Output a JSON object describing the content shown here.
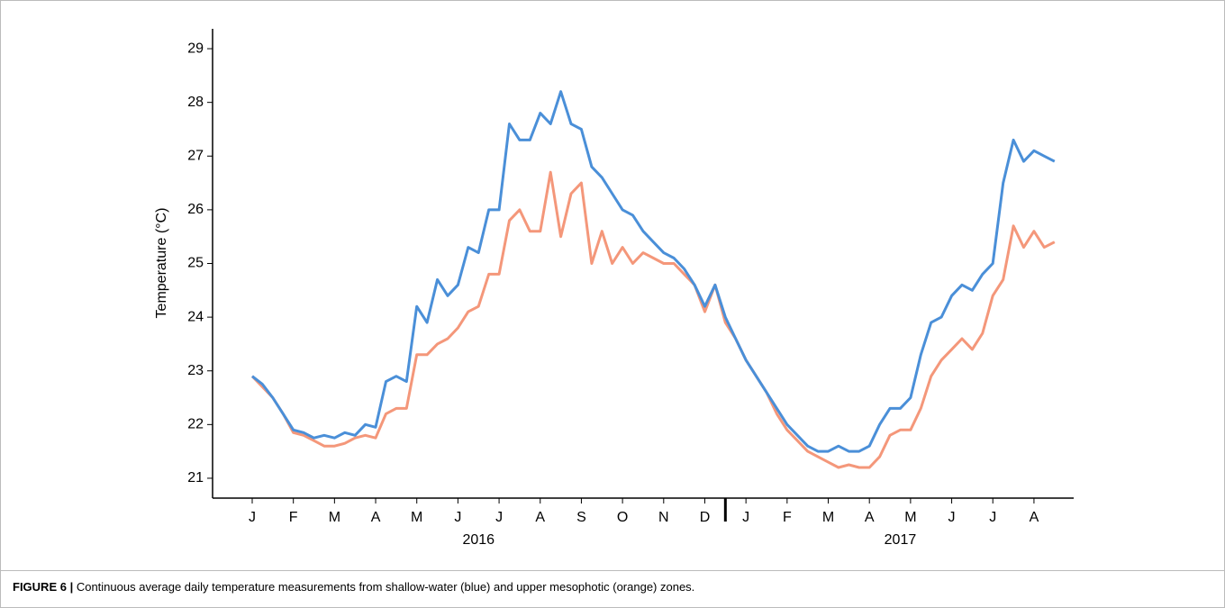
{
  "chart_data": {
    "type": "line",
    "y_label": "Temperature (°C)",
    "categories": [
      "J",
      null,
      null,
      null,
      "F",
      null,
      null,
      null,
      "M",
      null,
      null,
      null,
      "A",
      null,
      null,
      null,
      "M",
      null,
      null,
      null,
      "J",
      null,
      null,
      null,
      "J",
      null,
      null,
      null,
      "A",
      null,
      null,
      null,
      "S",
      null,
      null,
      null,
      "O",
      null,
      null,
      null,
      "N",
      null,
      null,
      null,
      "D",
      null,
      null,
      null,
      "J",
      null,
      null,
      null,
      "F",
      null,
      null,
      null,
      "M",
      null,
      null,
      null,
      "A",
      null,
      null,
      null,
      "M",
      null,
      null,
      null,
      "J",
      null,
      null,
      null,
      "J",
      null,
      null,
      null,
      "A",
      null,
      null
    ],
    "years": [
      "2016",
      "2017"
    ],
    "series": [
      {
        "color": "#4a8fd8",
        "values": [
          22.9,
          22.75,
          22.5,
          22.2,
          21.9,
          21.85,
          21.75,
          21.8,
          21.75,
          21.85,
          21.8,
          22.0,
          21.95,
          22.8,
          22.9,
          22.8,
          24.2,
          23.9,
          24.7,
          24.4,
          24.6,
          25.3,
          25.2,
          26.0,
          26.0,
          27.6,
          27.3,
          27.3,
          27.8,
          27.6,
          28.2,
          27.6,
          27.5,
          26.8,
          26.6,
          26.3,
          26.0,
          25.9,
          25.6,
          25.4,
          25.2,
          25.1,
          24.9,
          24.6,
          24.2,
          24.6,
          24.0,
          23.6,
          23.2,
          22.9,
          22.6,
          22.3,
          22.0,
          21.8,
          21.6,
          21.5,
          21.5,
          21.6,
          21.5,
          21.5,
          21.6,
          22.0,
          22.3,
          22.3,
          22.5,
          23.3,
          23.9,
          24.0,
          24.4,
          24.6,
          24.5,
          24.8,
          25.0,
          26.5,
          27.3,
          26.9,
          27.1,
          27.0,
          26.9
        ]
      },
      {
        "color": "#f4977a",
        "values": [
          22.9,
          22.7,
          22.5,
          22.2,
          21.85,
          21.8,
          21.7,
          21.6,
          21.6,
          21.65,
          21.75,
          21.8,
          21.75,
          22.2,
          22.3,
          22.3,
          23.3,
          23.3,
          23.5,
          23.6,
          23.8,
          24.1,
          24.2,
          24.8,
          24.8,
          25.8,
          26.0,
          25.6,
          25.6,
          26.7,
          25.5,
          26.3,
          26.5,
          25.0,
          25.6,
          25.0,
          25.3,
          25.0,
          25.2,
          25.1,
          25.0,
          25.0,
          24.8,
          24.6,
          24.1,
          24.6,
          23.9,
          23.6,
          23.2,
          22.9,
          22.6,
          22.2,
          21.9,
          21.7,
          21.5,
          21.4,
          21.3,
          21.2,
          21.25,
          21.2,
          21.2,
          21.4,
          21.8,
          21.9,
          21.9,
          22.3,
          22.9,
          23.2,
          23.4,
          23.6,
          23.4,
          23.7,
          24.4,
          24.7,
          25.7,
          25.3,
          25.6,
          25.3,
          25.4
        ]
      }
    ],
    "ylim": [
      20.63,
      29.37
    ],
    "yticks": [
      21,
      22,
      23,
      24,
      25,
      26,
      27,
      28,
      29
    ],
    "grid": false
  },
  "figure_label": "FIGURE 6 |",
  "caption": "Continuous average daily temperature measurements from shallow-water (blue) and upper mesophotic (orange) zones."
}
